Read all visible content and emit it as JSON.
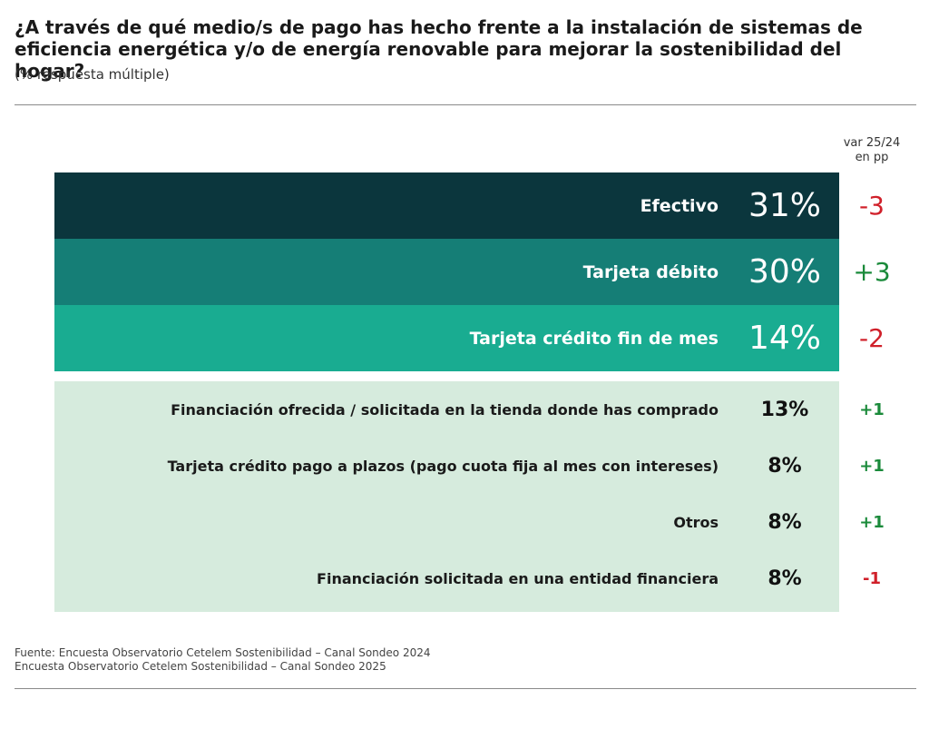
{
  "title": "¿A través de qué medio/s de pago has hecho frente a la instalación de sistemas de eficiencia energética y/o de energía renovable para mejorar la sostenibilidad del hogar?",
  "subtitle": "(% respuesta múltiple)",
  "var_header_line1": "var 25/24",
  "var_header_line2": "en pp",
  "colors": {
    "row1": "#0b363d",
    "row2": "#157e76",
    "row3": "#19ac91",
    "rest": "#d6ebdd",
    "negative": "#d0202a",
    "positive": "#1a8a3a"
  },
  "chart_data": {
    "type": "table",
    "title": "¿A través de qué medio/s de pago has hecho frente a la instalación de sistemas de eficiencia energética y/o de energía renovable para mejorar la sostenibilidad del hogar?",
    "subtitle": "(% respuesta múltiple)",
    "columns": [
      "",
      "",
      "var 25/24 en pp"
    ],
    "rows": [
      {
        "label": "Efectivo",
        "value_text": "31%",
        "value": 31,
        "var_text": "-3",
        "var": -3
      },
      {
        "label": "Tarjeta débito",
        "value_text": "30%",
        "value": 30,
        "var_text": "+3",
        "var": 3
      },
      {
        "label": "Tarjeta crédito fin de mes",
        "value_text": "14%",
        "value": 14,
        "var_text": "-2",
        "var": -2
      },
      {
        "label": "Financiación ofrecida / solicitada en la tienda donde has comprado",
        "value_text": "13%",
        "value": 13,
        "var_text": "+1",
        "var": 1
      },
      {
        "label": "Tarjeta crédito pago a plazos (pago cuota fija al mes con intereses)",
        "value_text": "8%",
        "value": 8,
        "var_text": "+1",
        "var": 1
      },
      {
        "label": "Otros",
        "value_text": "8%",
        "value": 8,
        "var_text": "+1",
        "var": 1
      },
      {
        "label": "Financiación solicitada en una entidad financiera",
        "value_text": "8%",
        "value": 8,
        "var_text": "-1",
        "var": -1
      }
    ]
  },
  "footer": {
    "line1": "Fuente: Encuesta Observatorio Cetelem Sostenibilidad – Canal Sondeo 2024",
    "line2": "Encuesta Observatorio Cetelem Sostenibilidad – Canal Sondeo 2025"
  }
}
